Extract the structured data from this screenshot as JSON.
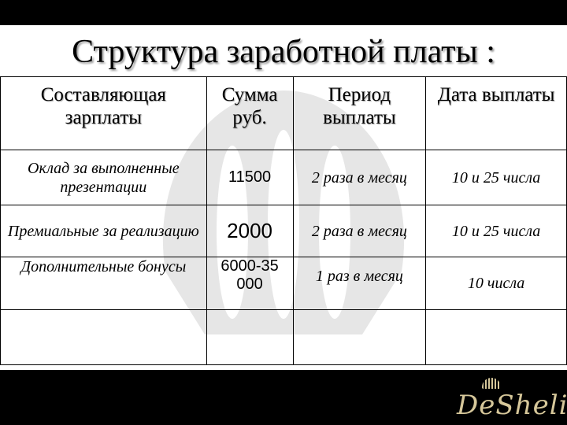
{
  "title": "Структура заработной платы :",
  "table": {
    "headers": [
      {
        "l1": "Составляющая",
        "l2": "зарплаты"
      },
      {
        "l1": "Сумма",
        "l2": "руб."
      },
      {
        "l1": "Период",
        "l2": "выплаты"
      },
      {
        "l1": "Дата выплаты",
        "l2": ""
      }
    ],
    "rows": [
      {
        "component": "Оклад за выполненные презентации",
        "amount": "11500",
        "period": "2 раза в месяц",
        "date": "10 и 25 числа"
      },
      {
        "component": "Премиальные за реализацию",
        "amount": "2000",
        "period": "2 раза в месяц",
        "date": "10 и 25 числа"
      },
      {
        "component": "Дополнительные бонусы",
        "amount": "6000-35000",
        "period": "1 раз в месяц",
        "date": "10 числа"
      },
      {
        "component": "",
        "amount": "",
        "period": "",
        "date": ""
      }
    ]
  },
  "logo": {
    "text": "DeSheli",
    "color": "#d6c79a"
  }
}
